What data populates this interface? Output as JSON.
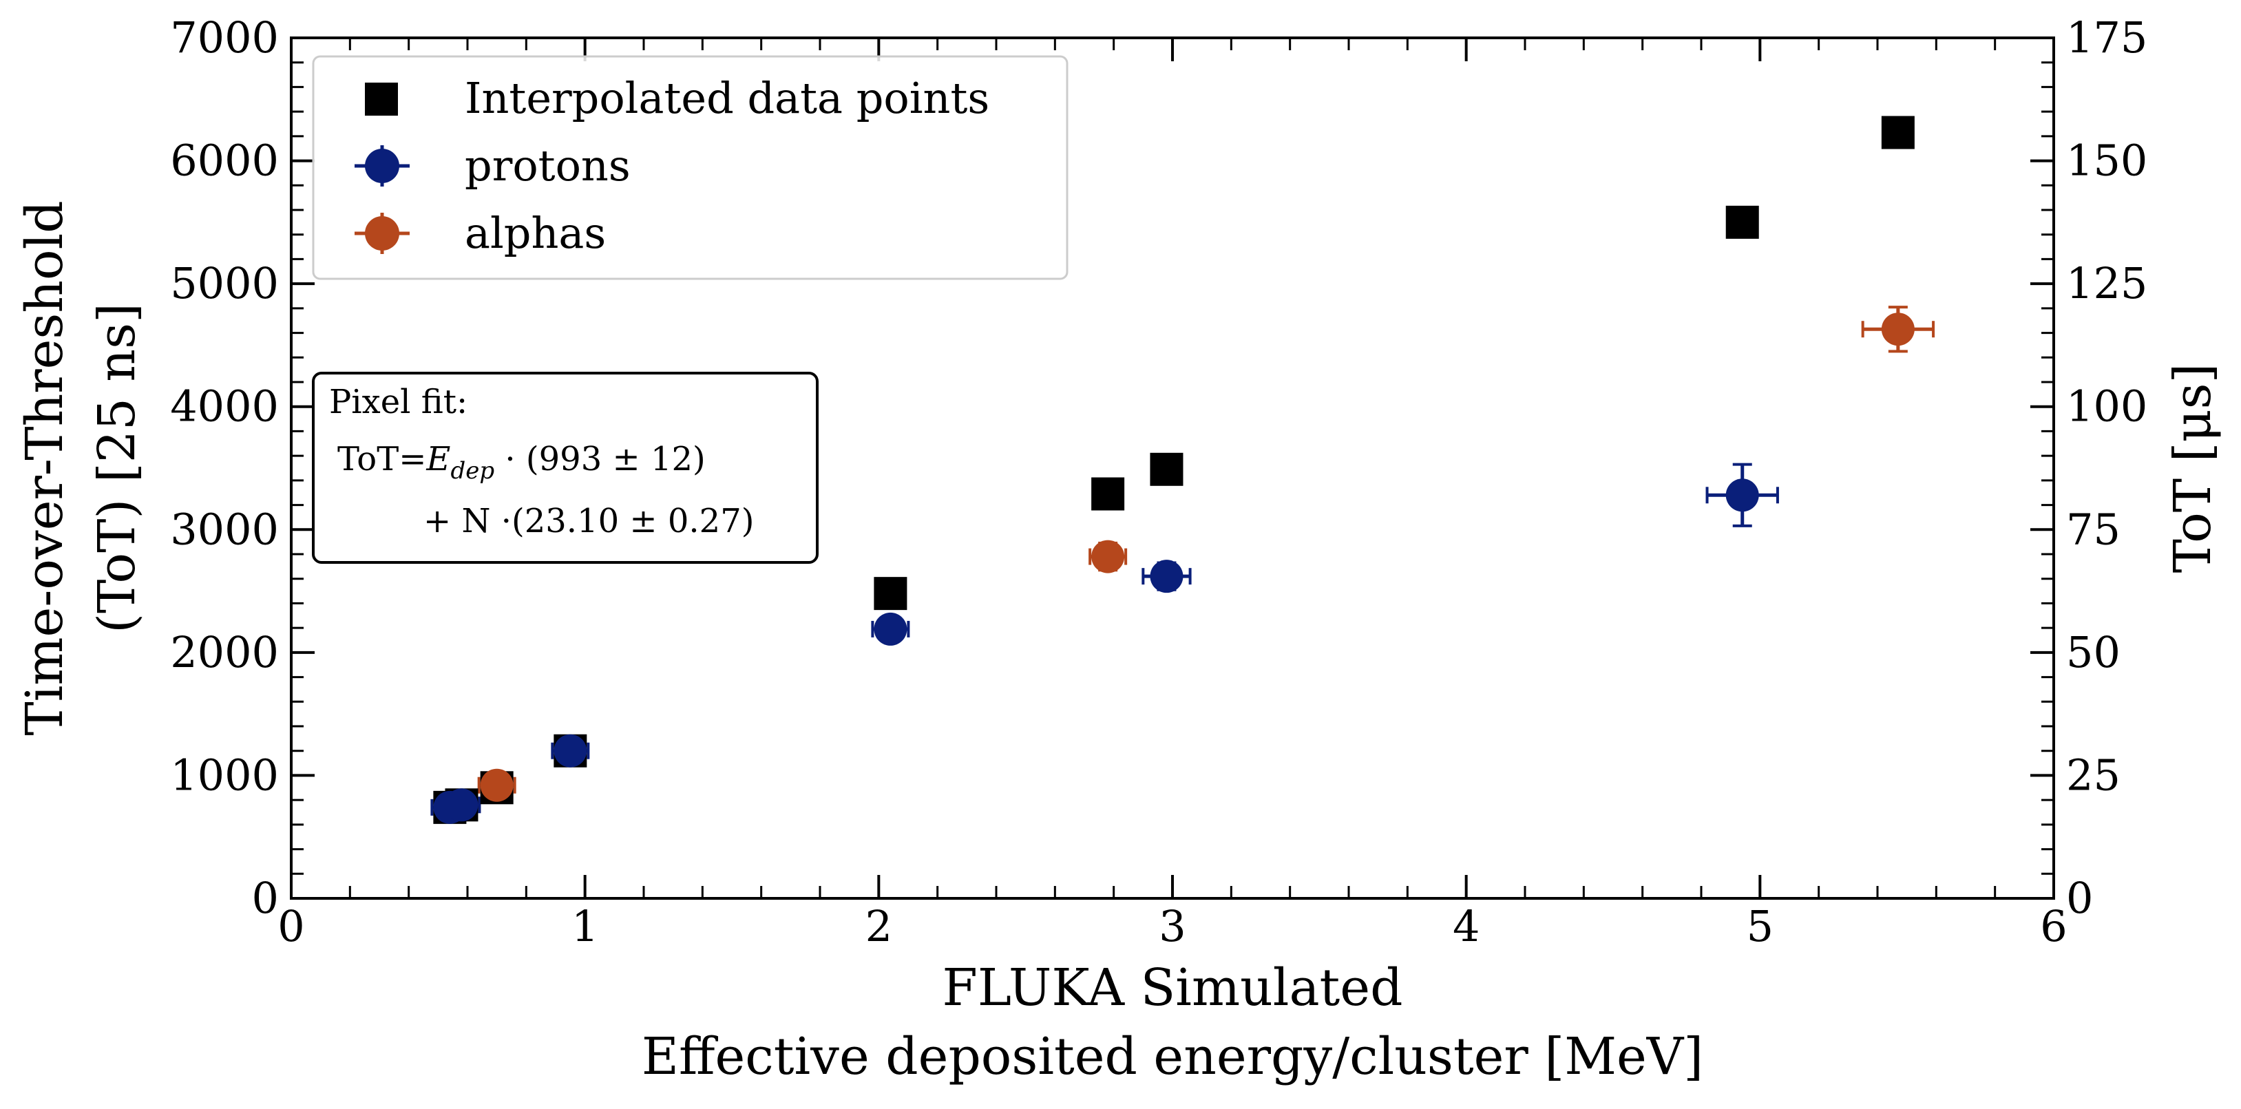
{
  "chart_data": {
    "type": "scatter",
    "xlabel_lines": [
      "FLUKA Simulated",
      "Effective deposited energy/cluster [MeV]"
    ],
    "ylabel_left_lines": [
      "Time-over-Threshold",
      "(ToT) [25 ns]"
    ],
    "ylabel_right": "ToT [μs]",
    "xlim": [
      0,
      6
    ],
    "ylim_left": [
      0,
      7000
    ],
    "ylim_right": [
      0,
      175
    ],
    "x_ticks": [
      0,
      1,
      2,
      3,
      4,
      5,
      6
    ],
    "y_ticks_left": [
      0,
      1000,
      2000,
      3000,
      4000,
      5000,
      6000,
      7000
    ],
    "y_ticks_right": [
      0,
      25,
      50,
      75,
      100,
      125,
      150,
      175
    ],
    "grid": false,
    "legend_position": "top-left",
    "series": [
      {
        "name": "Interpolated data points",
        "marker": "square",
        "color": "#000000",
        "points": [
          {
            "x": 0.54,
            "y": 740
          },
          {
            "x": 0.58,
            "y": 760
          },
          {
            "x": 0.7,
            "y": 900
          },
          {
            "x": 0.95,
            "y": 1200
          },
          {
            "x": 2.04,
            "y": 2480
          },
          {
            "x": 2.78,
            "y": 3290
          },
          {
            "x": 2.98,
            "y": 3490
          },
          {
            "x": 4.94,
            "y": 5500
          },
          {
            "x": 5.47,
            "y": 6230
          }
        ]
      },
      {
        "name": "protons",
        "marker": "circle",
        "color": "#0a1f7a",
        "points": [
          {
            "x": 0.54,
            "y": 740,
            "xerr": 0.02,
            "yerr": 40
          },
          {
            "x": 0.58,
            "y": 760,
            "xerr": 0.02,
            "yerr": 40
          },
          {
            "x": 0.95,
            "y": 1200,
            "xerr": 0.03,
            "yerr": 50
          },
          {
            "x": 2.04,
            "y": 2190,
            "xerr": 0.05,
            "yerr": 90
          },
          {
            "x": 2.98,
            "y": 2620,
            "xerr": 0.08,
            "yerr": 110
          },
          {
            "x": 4.94,
            "y": 3280,
            "xerr": 0.12,
            "yerr": 250
          }
        ]
      },
      {
        "name": "alphas",
        "marker": "circle",
        "color": "#b5471c",
        "points": [
          {
            "x": 0.7,
            "y": 920,
            "xerr": 0.03,
            "yerr": 60
          },
          {
            "x": 2.78,
            "y": 2780,
            "xerr": 0.05,
            "yerr": 110
          },
          {
            "x": 5.47,
            "y": 4630,
            "xerr": 0.12,
            "yerr": 180
          }
        ]
      }
    ],
    "fit_box": {
      "title": "Pixel fit:",
      "line1_prefix": "ToT=",
      "line1_symbol": "E",
      "line1_subscript": "dep",
      "line1_suffix": " · (993 ± 12)",
      "line2": "+ N ·(23.10 ± 0.27)"
    }
  }
}
